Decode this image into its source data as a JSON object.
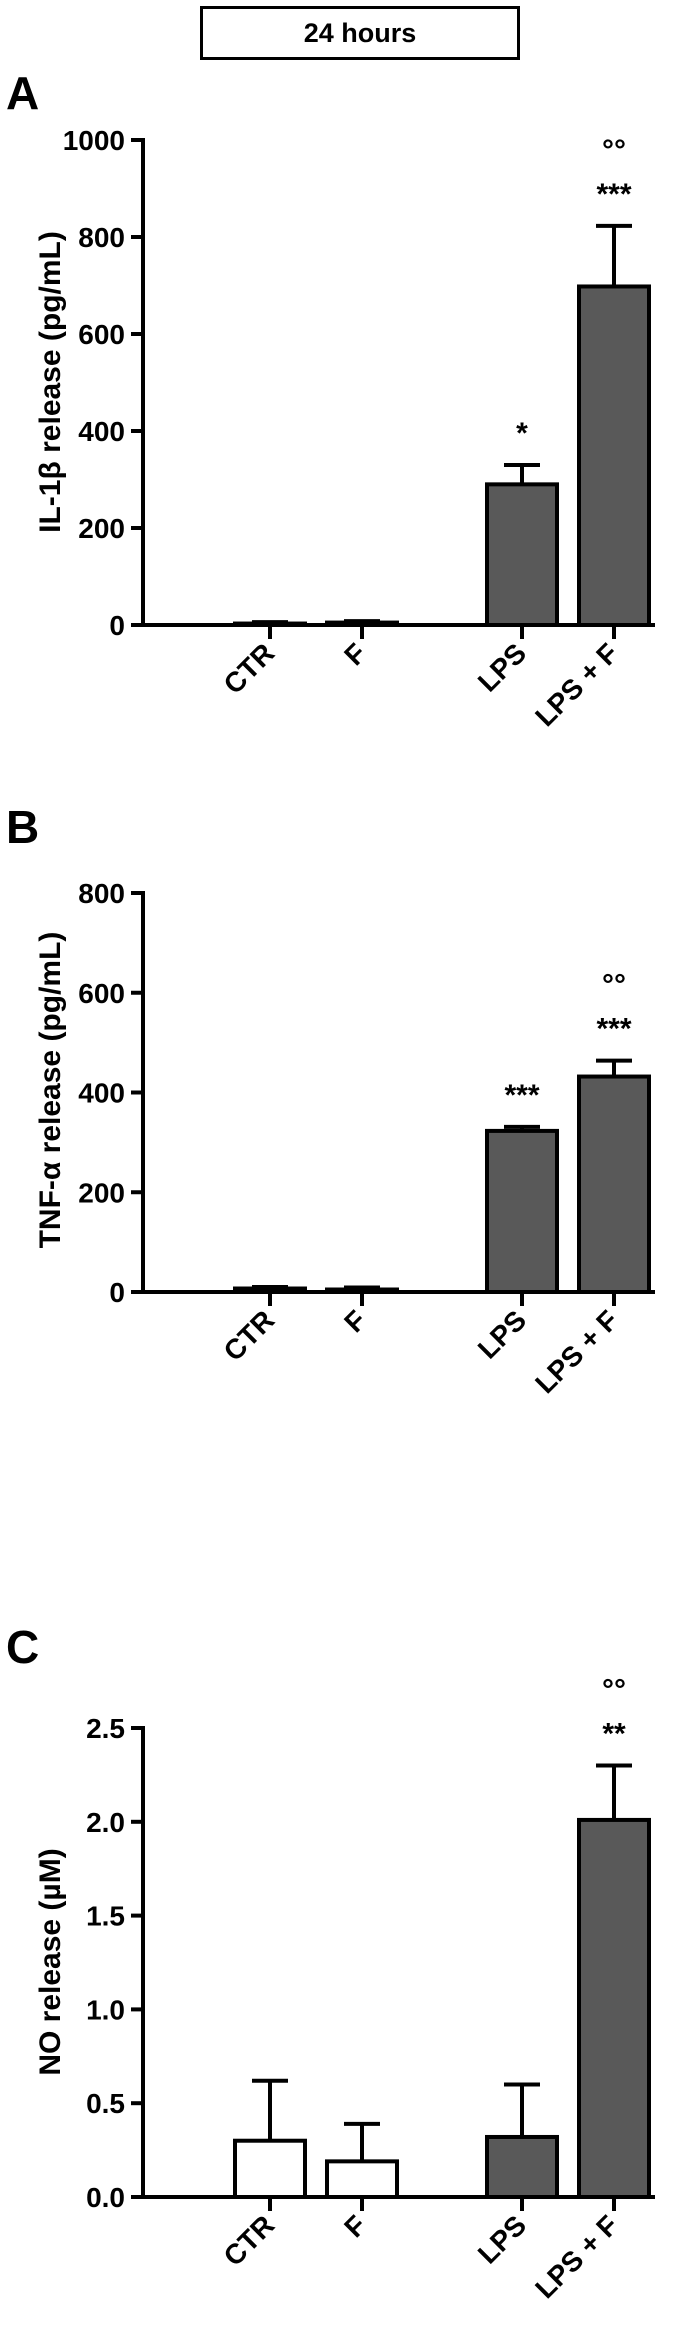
{
  "header": {
    "label": "24 hours"
  },
  "colors": {
    "axis": "#000000",
    "filled_bar": "#595959",
    "open_bar": "#ffffff"
  },
  "chart_data": [
    {
      "panel": "A",
      "type": "bar",
      "ylabel": "IL-1β release (pg/mL)",
      "ylim": [
        0,
        1000
      ],
      "yticks": [
        0,
        200,
        400,
        600,
        800,
        1000
      ],
      "categories": [
        "CTR",
        "F",
        "LPS",
        "LPS + F"
      ],
      "values": [
        3,
        5,
        290,
        698
      ],
      "errors": [
        3,
        3,
        40,
        125
      ],
      "fill": [
        "open",
        "open",
        "filled",
        "filled"
      ],
      "annotations": [
        {
          "category": "LPS",
          "labels": [
            "*"
          ]
        },
        {
          "category": "LPS + F",
          "labels": [
            "°°",
            "***"
          ]
        }
      ]
    },
    {
      "panel": "B",
      "type": "bar",
      "ylabel": "TNF-α release (pg/mL)",
      "ylim": [
        0,
        800
      ],
      "yticks": [
        0,
        200,
        400,
        600,
        800
      ],
      "categories": [
        "CTR",
        "F",
        "LPS",
        "LPS + F"
      ],
      "values": [
        7,
        5,
        323,
        432
      ],
      "errors": [
        3,
        4,
        8,
        32
      ],
      "fill": [
        "open",
        "open",
        "filled",
        "filled"
      ],
      "annotations": [
        {
          "category": "LPS",
          "labels": [
            "***"
          ]
        },
        {
          "category": "LPS + F",
          "labels": [
            "°°",
            "***"
          ]
        }
      ]
    },
    {
      "panel": "C",
      "type": "bar",
      "ylabel": "NO release (µM)",
      "ylim": [
        0,
        2.5
      ],
      "yticks": [
        0.0,
        0.5,
        1.0,
        1.5,
        2.0,
        2.5
      ],
      "categories": [
        "CTR",
        "F",
        "LPS",
        "LPS + F"
      ],
      "values": [
        0.3,
        0.19,
        0.32,
        2.01
      ],
      "errors": [
        0.32,
        0.2,
        0.28,
        0.29
      ],
      "fill": [
        "open",
        "open",
        "filled",
        "filled"
      ],
      "annotations": [
        {
          "category": "LPS + F",
          "labels": [
            "°°",
            "**"
          ]
        }
      ]
    }
  ]
}
